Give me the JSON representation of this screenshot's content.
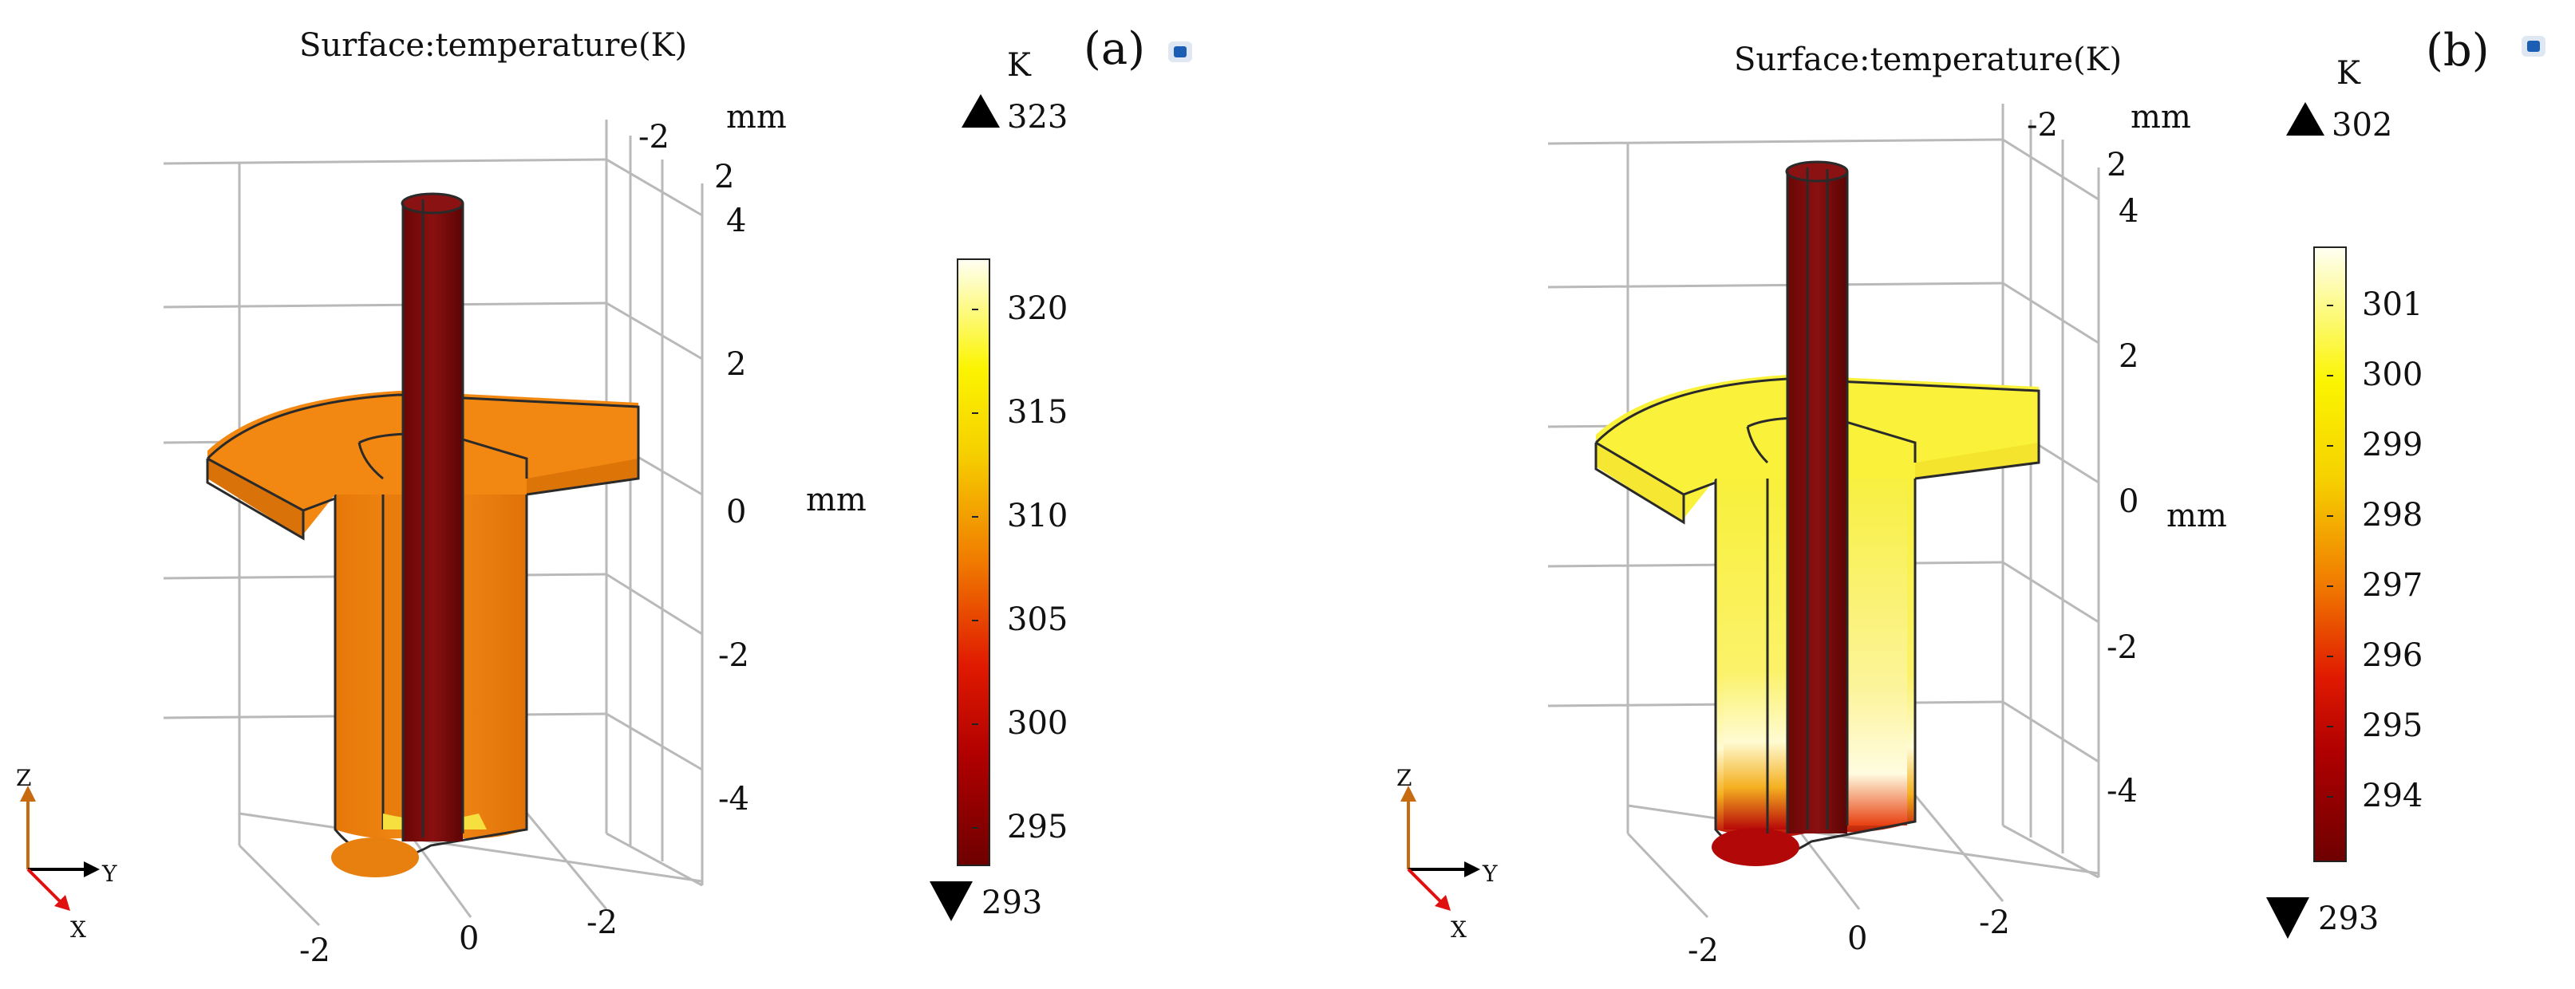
{
  "panels": [
    {
      "id": "a",
      "label": "(a)",
      "title": "Surface:temperature(K)",
      "unit": "K",
      "max_value": "323",
      "min_value": "293",
      "colorbar_ticks": [
        "320",
        "315",
        "310",
        "305",
        "300",
        "295"
      ],
      "z_ticks": [
        "4",
        "2",
        "0",
        "-2",
        "-4"
      ],
      "x_ticks": [
        "-2",
        "0",
        "-2"
      ],
      "y_ticks_top": [
        "-2",
        "2"
      ],
      "axis_unit_top": "mm",
      "axis_unit_side": "mm",
      "triad": {
        "z": "Z",
        "y": "Y",
        "x": "X"
      },
      "colors": {
        "body": "#F08A14",
        "body_dark": "#D2700A",
        "rod": "#7A0A0A"
      }
    },
    {
      "id": "b",
      "label": "(b)",
      "title": "Surface:temperature(K)",
      "unit": "K",
      "max_value": "302",
      "min_value": "293",
      "colorbar_ticks": [
        "301",
        "300",
        "299",
        "298",
        "297",
        "296",
        "295",
        "294"
      ],
      "z_ticks": [
        "4",
        "2",
        "0",
        "-2",
        "-4"
      ],
      "x_ticks": [
        "-2",
        "0",
        "-2"
      ],
      "y_ticks_top": [
        "-2",
        "2"
      ],
      "axis_unit_top": "mm",
      "axis_unit_side": "mm",
      "triad": {
        "z": "Z",
        "y": "Y",
        "x": "X"
      },
      "colors": {
        "body": "#FAF23C",
        "body_light": "#FFFCD0",
        "rod": "#7A0A0A",
        "hot": "#C81010"
      }
    }
  ]
}
